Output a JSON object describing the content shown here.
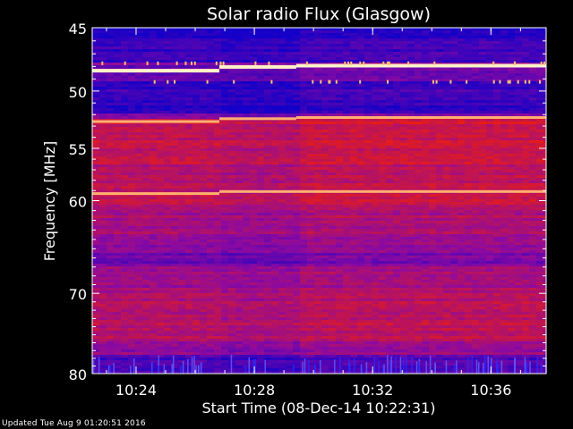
{
  "footer": "Updated Tue Aug  9 01:20:51 2016",
  "chart_data": {
    "type": "heatmap",
    "title": "Solar radio Flux (Glasgow)",
    "xlabel": "Start Time (08-Dec-14 10:22:31)",
    "ylabel": "Frequency [MHz]",
    "x_unit": "minutes",
    "xlim": [
      0,
      15.35
    ],
    "ylim": [
      45,
      80
    ],
    "y_scale": "log",
    "y_inverted": true,
    "x_ticks": [
      {
        "t": 1.483,
        "label": "10:24"
      },
      {
        "t": 5.483,
        "label": "10:28"
      },
      {
        "t": 9.483,
        "label": "10:32"
      },
      {
        "t": 13.483,
        "label": "10:36"
      }
    ],
    "y_ticks": [
      45,
      50,
      55,
      60,
      70,
      80
    ],
    "y_minor_ticks": [
      46,
      47,
      48,
      49,
      51,
      52,
      53,
      54,
      56,
      57,
      58,
      59,
      61,
      62,
      63,
      64,
      65,
      66,
      67,
      68,
      69,
      71,
      72,
      73,
      74,
      75,
      76,
      77,
      78,
      79
    ],
    "colors": {
      "background": "#000000",
      "low": "#0000c8",
      "mid": "#cc1111",
      "high": "#ffd07a"
    },
    "segments": [
      0,
      4.3,
      6.9,
      15.35
    ],
    "bright_lines_mhz": [
      48.3,
      52.6,
      59.3
    ]
  }
}
